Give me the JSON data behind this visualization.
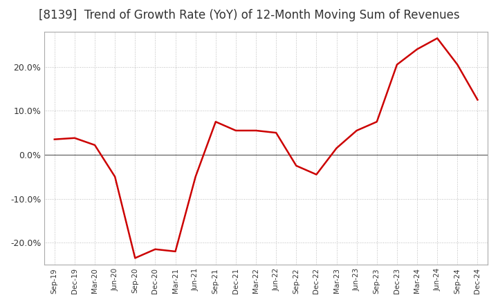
{
  "title": "[8139]  Trend of Growth Rate (YoY) of 12-Month Moving Sum of Revenues",
  "title_fontsize": 12,
  "line_color": "#cc0000",
  "background_color": "#ffffff",
  "grid_color": "#bbbbbb",
  "xlabels": [
    "Sep-19",
    "Dec-19",
    "Mar-20",
    "Jun-20",
    "Sep-20",
    "Dec-20",
    "Mar-21",
    "Jun-21",
    "Sep-21",
    "Dec-21",
    "Mar-22",
    "Jun-22",
    "Sep-22",
    "Dec-22",
    "Mar-23",
    "Jun-23",
    "Sep-23",
    "Dec-23",
    "Mar-24",
    "Jun-24",
    "Sep-24",
    "Dec-24"
  ],
  "yvalues": [
    3.5,
    3.8,
    2.2,
    -5.0,
    -23.5,
    -21.5,
    -22.0,
    -5.0,
    7.5,
    5.5,
    5.5,
    5.0,
    -2.5,
    -4.5,
    1.5,
    5.5,
    7.5,
    20.5,
    24.0,
    26.5,
    20.5,
    12.5
  ],
  "ylim": [
    -25,
    28
  ],
  "yticks": [
    -20.0,
    -10.0,
    0.0,
    10.0,
    20.0
  ],
  "zero_line_color": "#555555"
}
